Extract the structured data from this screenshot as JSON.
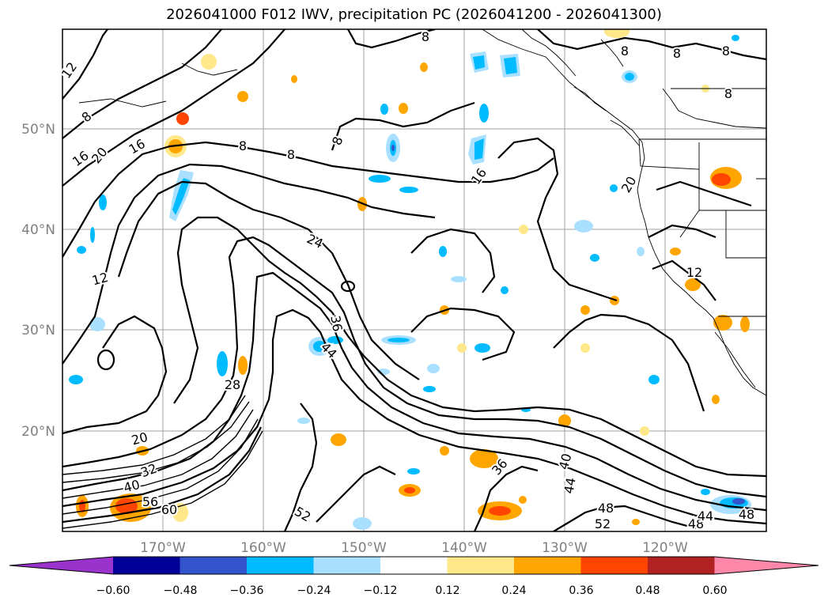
{
  "title": "2026041000 F012 IWV, precipitation PC (2026041200 - 2026041300)",
  "lat_labels": [
    "50°N",
    "40°N",
    "30°N",
    "20°N"
  ],
  "lon_labels": [
    "170°W",
    "160°W",
    "150°W",
    "140°W",
    "130°W",
    "120°W"
  ],
  "colorbar": {
    "colors": [
      "#9933cc",
      "#000099",
      "#3355cc",
      "#00bbff",
      "#aae0ff",
      "#ffffff",
      "#ffe88a",
      "#ffa500",
      "#ff4500",
      "#b22222",
      "#ff88aa"
    ],
    "tick_labels": [
      "−0.60",
      "−0.48",
      "−0.36",
      "−0.24",
      "−0.12",
      "0.12",
      "0.24",
      "0.36",
      "0.48",
      "0.60"
    ]
  },
  "contour_labels": [
    "12",
    "8",
    "16",
    "20",
    "16",
    "8",
    "8",
    "8",
    "16",
    "24",
    "36",
    "44",
    "28",
    "20",
    "32",
    "40",
    "56",
    "60",
    "52",
    "36",
    "40",
    "44",
    "48",
    "52",
    "48",
    "44",
    "48",
    "20",
    "12",
    "8",
    "8",
    "8",
    "8",
    "12",
    "8"
  ]
}
